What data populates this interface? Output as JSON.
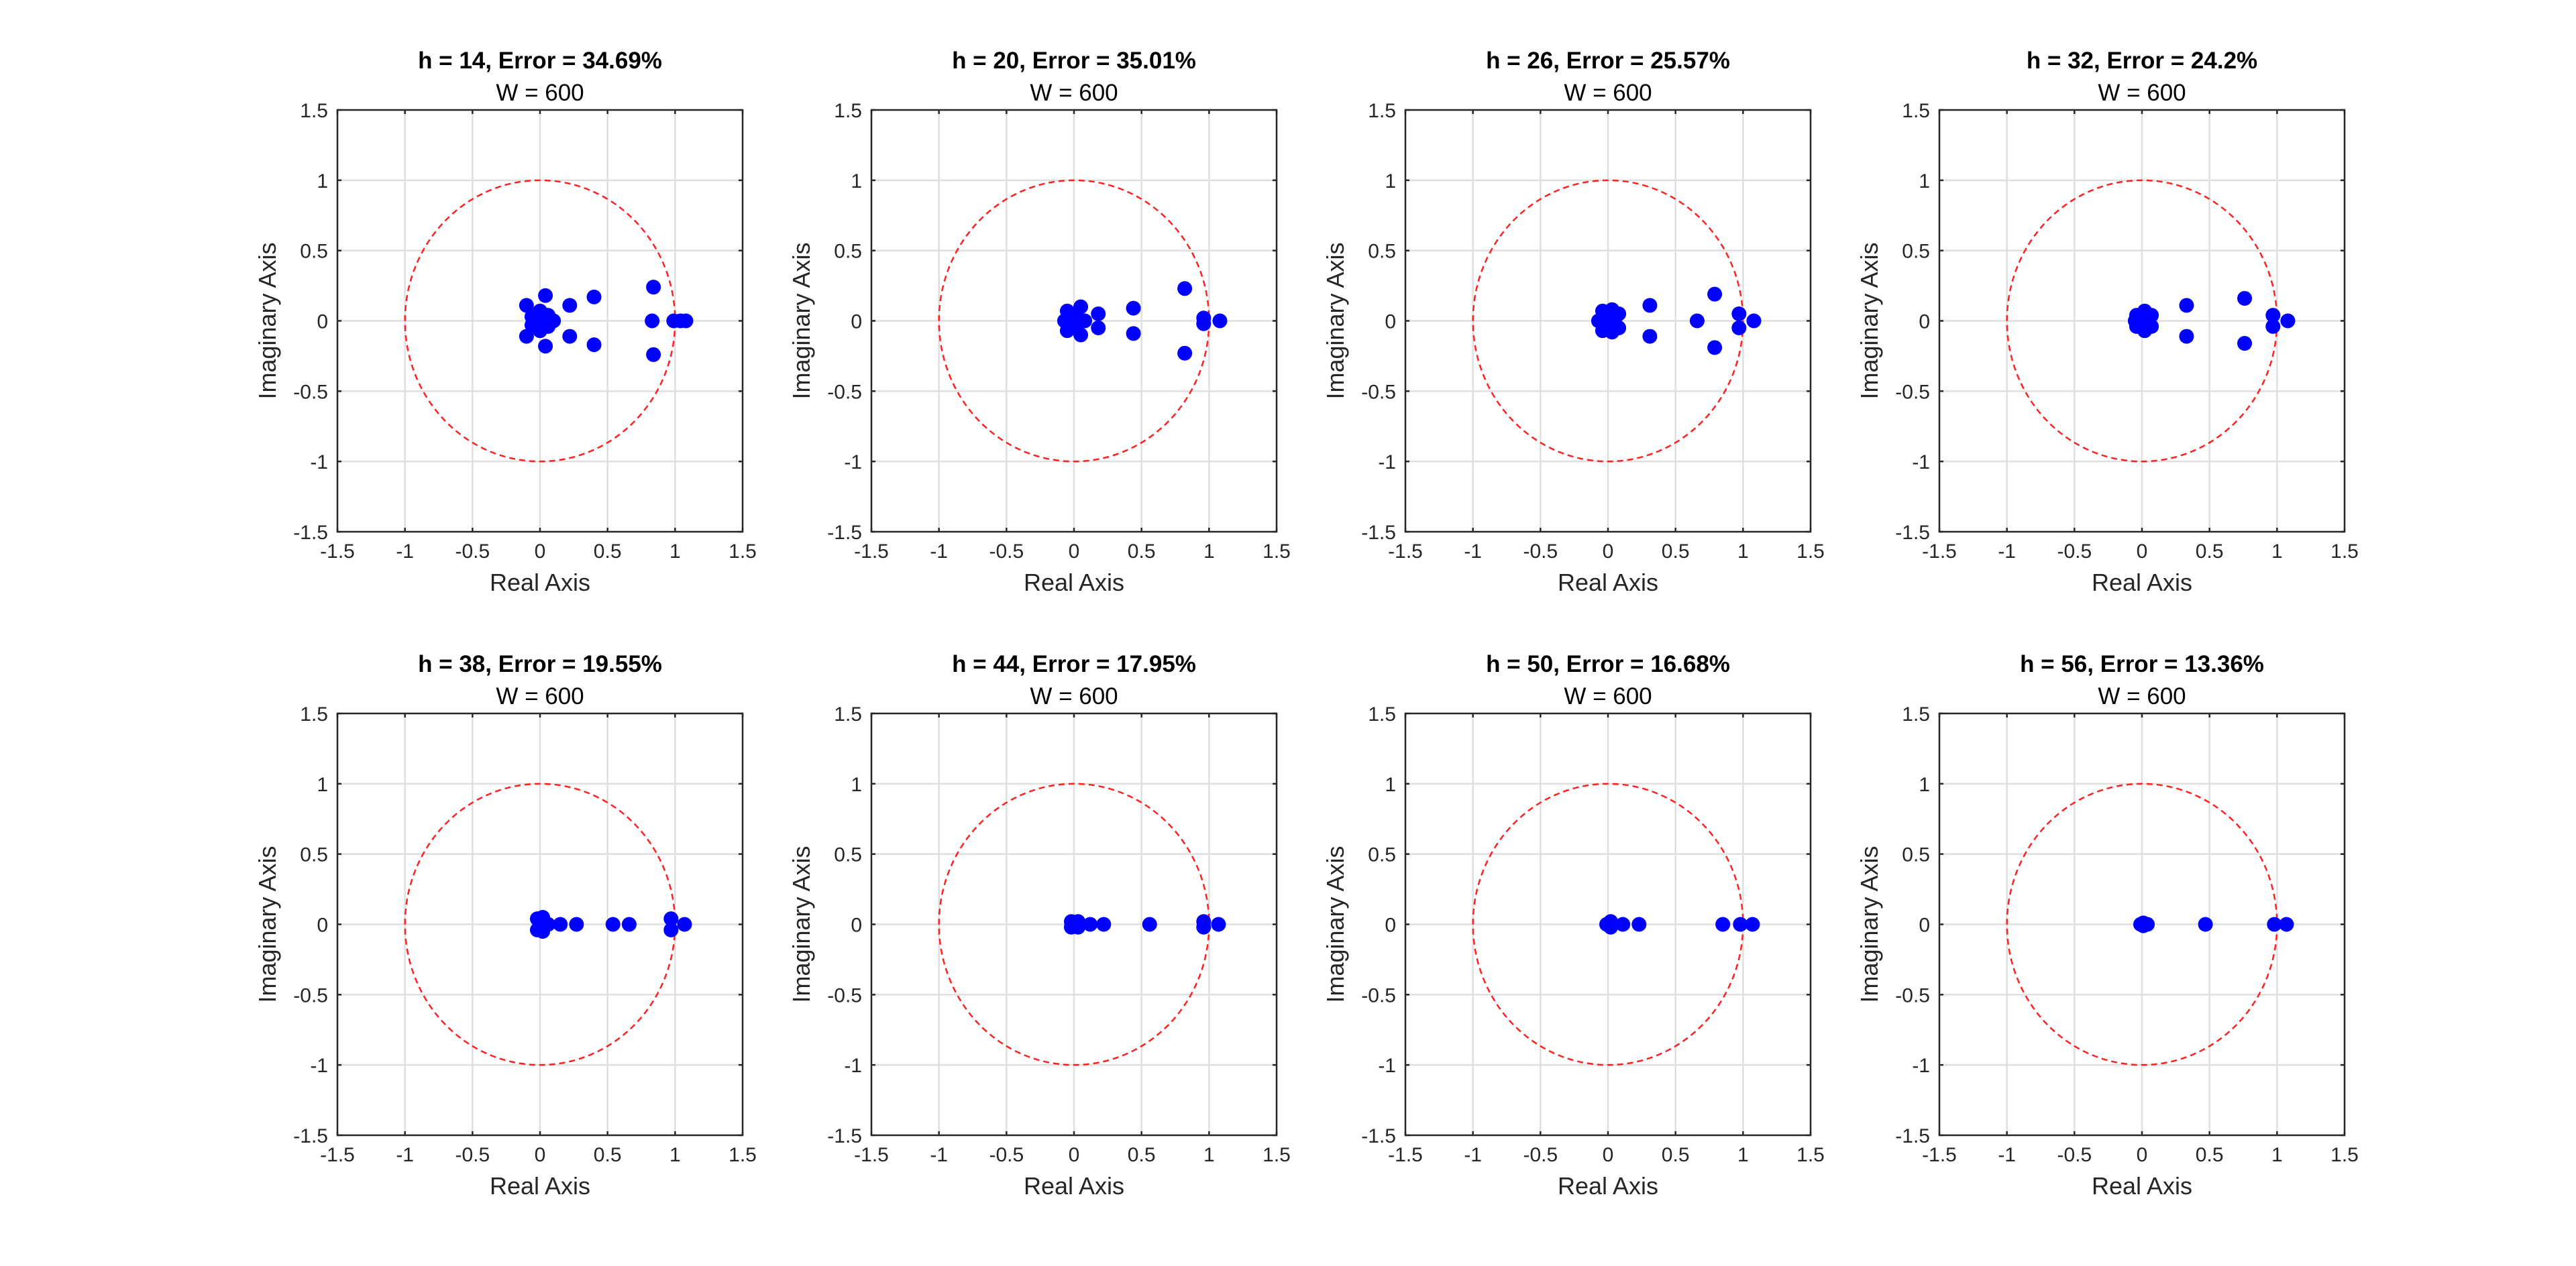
{
  "figure": {
    "background": "#ffffff",
    "circle_color": "#ff2020",
    "marker_color": "#0000ff"
  },
  "chart_data": [
    {
      "type": "scatter",
      "title": "h = 14, Error = 34.69%",
      "subtitle": "W = 600",
      "xlabel": "Real Axis",
      "ylabel": "Imaginary Axis",
      "xlim": [
        -1.5,
        1.5
      ],
      "ylim": [
        -1.5,
        1.5
      ],
      "xticks": [
        "-1.5",
        "-1",
        "-0.5",
        "0",
        "0.5",
        "1",
        "1.5"
      ],
      "yticks": [
        "-1.5",
        "-1",
        "-0.5",
        "0",
        "0.5",
        "1",
        "1.5"
      ],
      "grid": true,
      "unit_circle": true,
      "points": [
        [
          1.08,
          0
        ],
        [
          1.04,
          0
        ],
        [
          0.99,
          0
        ],
        [
          0.84,
          0.24
        ],
        [
          0.84,
          -0.24
        ],
        [
          0.83,
          0
        ],
        [
          0.4,
          0.17
        ],
        [
          0.4,
          -0.17
        ],
        [
          0.22,
          0.11
        ],
        [
          0.22,
          -0.11
        ],
        [
          0.04,
          0.18
        ],
        [
          0.04,
          -0.18
        ],
        [
          -0.1,
          0.11
        ],
        [
          -0.1,
          -0.11
        ],
        [
          0.1,
          0
        ],
        [
          0.06,
          0.04
        ],
        [
          0.06,
          -0.04
        ],
        [
          0,
          0.07
        ],
        [
          0,
          -0.07
        ],
        [
          -0.06,
          0.03
        ],
        [
          -0.06,
          -0.03
        ],
        [
          0,
          0
        ]
      ]
    },
    {
      "type": "scatter",
      "title": "h = 20, Error = 35.01%",
      "subtitle": "W = 600",
      "xlabel": "Real Axis",
      "ylabel": "Imaginary Axis",
      "xlim": [
        -1.5,
        1.5
      ],
      "ylim": [
        -1.5,
        1.5
      ],
      "xticks": [
        "-1.5",
        "-1",
        "-0.5",
        "0",
        "0.5",
        "1",
        "1.5"
      ],
      "yticks": [
        "-1.5",
        "-1",
        "-0.5",
        "0",
        "0.5",
        "1",
        "1.5"
      ],
      "grid": true,
      "unit_circle": true,
      "points": [
        [
          1.08,
          0
        ],
        [
          0.96,
          0.02
        ],
        [
          0.96,
          -0.02
        ],
        [
          0.82,
          0.23
        ],
        [
          0.82,
          -0.23
        ],
        [
          0.44,
          0.09
        ],
        [
          0.44,
          -0.09
        ],
        [
          0.18,
          0.05
        ],
        [
          0.18,
          -0.05
        ],
        [
          0.05,
          0.1
        ],
        [
          0.05,
          -0.1
        ],
        [
          -0.05,
          0.07
        ],
        [
          -0.05,
          -0.07
        ],
        [
          0.08,
          0
        ],
        [
          0.02,
          0.02
        ],
        [
          0.02,
          -0.02
        ],
        [
          -0.07,
          0
        ]
      ]
    },
    {
      "type": "scatter",
      "title": "h = 26, Error = 25.57%",
      "subtitle": "W = 600",
      "xlabel": "Real Axis",
      "ylabel": "Imaginary Axis",
      "xlim": [
        -1.5,
        1.5
      ],
      "ylim": [
        -1.5,
        1.5
      ],
      "xticks": [
        "-1.5",
        "-1",
        "-0.5",
        "0",
        "0.5",
        "1",
        "1.5"
      ],
      "yticks": [
        "-1.5",
        "-1",
        "-0.5",
        "0",
        "0.5",
        "1",
        "1.5"
      ],
      "grid": true,
      "unit_circle": true,
      "points": [
        [
          1.08,
          0
        ],
        [
          0.97,
          0.05
        ],
        [
          0.97,
          -0.05
        ],
        [
          0.79,
          0.19
        ],
        [
          0.79,
          -0.19
        ],
        [
          0.66,
          0
        ],
        [
          0.31,
          0.11
        ],
        [
          0.31,
          -0.11
        ],
        [
          0.08,
          0.05
        ],
        [
          0.08,
          -0.05
        ],
        [
          0.03,
          0.08
        ],
        [
          0.03,
          -0.08
        ],
        [
          -0.04,
          0.07
        ],
        [
          -0.04,
          -0.07
        ],
        [
          -0.07,
          0
        ],
        [
          0.05,
          0
        ],
        [
          0,
          0.03
        ],
        [
          0,
          -0.03
        ]
      ]
    },
    {
      "type": "scatter",
      "title": "h = 32, Error = 24.2%",
      "subtitle": "W = 600",
      "xlabel": "Real Axis",
      "ylabel": "Imaginary Axis",
      "xlim": [
        -1.5,
        1.5
      ],
      "ylim": [
        -1.5,
        1.5
      ],
      "xticks": [
        "-1.5",
        "-1",
        "-0.5",
        "0",
        "0.5",
        "1",
        "1.5"
      ],
      "yticks": [
        "-1.5",
        "-1",
        "-0.5",
        "0",
        "0.5",
        "1",
        "1.5"
      ],
      "grid": true,
      "unit_circle": true,
      "points": [
        [
          1.08,
          0
        ],
        [
          0.97,
          0.04
        ],
        [
          0.97,
          -0.04
        ],
        [
          0.76,
          0.16
        ],
        [
          0.76,
          -0.16
        ],
        [
          0.33,
          0.11
        ],
        [
          0.33,
          -0.11
        ],
        [
          0.07,
          0.04
        ],
        [
          0.07,
          -0.04
        ],
        [
          0.02,
          0.07
        ],
        [
          0.02,
          -0.07
        ],
        [
          -0.04,
          0.04
        ],
        [
          -0.04,
          -0.04
        ],
        [
          0.04,
          0
        ],
        [
          -0.05,
          0
        ]
      ]
    },
    {
      "type": "scatter",
      "title": "h = 38, Error = 19.55%",
      "subtitle": "W = 600",
      "xlabel": "Real Axis",
      "ylabel": "Imaginary Axis",
      "xlim": [
        -1.5,
        1.5
      ],
      "ylim": [
        -1.5,
        1.5
      ],
      "xticks": [
        "-1.5",
        "-1",
        "-0.5",
        "0",
        "0.5",
        "1",
        "1.5"
      ],
      "yticks": [
        "-1.5",
        "-1",
        "-0.5",
        "0",
        "0.5",
        "1",
        "1.5"
      ],
      "grid": true,
      "unit_circle": true,
      "points": [
        [
          1.07,
          0
        ],
        [
          0.97,
          0.04
        ],
        [
          0.97,
          -0.04
        ],
        [
          0.66,
          0
        ],
        [
          0.54,
          0
        ],
        [
          0.27,
          0
        ],
        [
          0.15,
          0
        ],
        [
          0.06,
          0
        ],
        [
          0.02,
          0.05
        ],
        [
          0.02,
          -0.05
        ],
        [
          -0.02,
          0.04
        ],
        [
          -0.02,
          -0.04
        ],
        [
          0,
          0
        ]
      ]
    },
    {
      "type": "scatter",
      "title": "h = 44, Error = 17.95%",
      "subtitle": "W = 600",
      "xlabel": "Real Axis",
      "ylabel": "Imaginary Axis",
      "xlim": [
        -1.5,
        1.5
      ],
      "ylim": [
        -1.5,
        1.5
      ],
      "xticks": [
        "-1.5",
        "-1",
        "-0.5",
        "0",
        "0.5",
        "1",
        "1.5"
      ],
      "yticks": [
        "-1.5",
        "-1",
        "-0.5",
        "0",
        "0.5",
        "1",
        "1.5"
      ],
      "grid": true,
      "unit_circle": true,
      "points": [
        [
          1.07,
          0
        ],
        [
          0.96,
          0.02
        ],
        [
          0.96,
          -0.02
        ],
        [
          0.56,
          0
        ],
        [
          0.22,
          0
        ],
        [
          0.12,
          0
        ],
        [
          0.03,
          0.02
        ],
        [
          0.03,
          -0.02
        ],
        [
          -0.02,
          0.02
        ],
        [
          -0.02,
          -0.02
        ],
        [
          0,
          0
        ]
      ]
    },
    {
      "type": "scatter",
      "title": "h = 50, Error = 16.68%",
      "subtitle": "W = 600",
      "xlabel": "Real Axis",
      "ylabel": "Imaginary Axis",
      "xlim": [
        -1.5,
        1.5
      ],
      "ylim": [
        -1.5,
        1.5
      ],
      "xticks": [
        "-1.5",
        "-1",
        "-0.5",
        "0",
        "0.5",
        "1",
        "1.5"
      ],
      "yticks": [
        "-1.5",
        "-1",
        "-0.5",
        "0",
        "0.5",
        "1",
        "1.5"
      ],
      "grid": true,
      "unit_circle": true,
      "points": [
        [
          1.07,
          0
        ],
        [
          0.98,
          0
        ],
        [
          0.85,
          0
        ],
        [
          0.23,
          0
        ],
        [
          0.11,
          0
        ],
        [
          0.02,
          0.02
        ],
        [
          0.02,
          -0.02
        ],
        [
          -0.01,
          0
        ],
        [
          0.03,
          0
        ]
      ]
    },
    {
      "type": "scatter",
      "title": "h = 56, Error = 13.36%",
      "subtitle": "W = 600",
      "xlabel": "Real Axis",
      "ylabel": "Imaginary Axis",
      "xlim": [
        -1.5,
        1.5
      ],
      "ylim": [
        -1.5,
        1.5
      ],
      "xticks": [
        "-1.5",
        "-1",
        "-0.5",
        "0",
        "0.5",
        "1",
        "1.5"
      ],
      "yticks": [
        "-1.5",
        "-1",
        "-0.5",
        "0",
        "0.5",
        "1",
        "1.5"
      ],
      "grid": true,
      "unit_circle": true,
      "points": [
        [
          1.07,
          0
        ],
        [
          0.98,
          0
        ],
        [
          0.47,
          0
        ],
        [
          0.04,
          0
        ],
        [
          0.01,
          0.01
        ],
        [
          0.01,
          -0.01
        ],
        [
          -0.01,
          0
        ]
      ]
    }
  ]
}
